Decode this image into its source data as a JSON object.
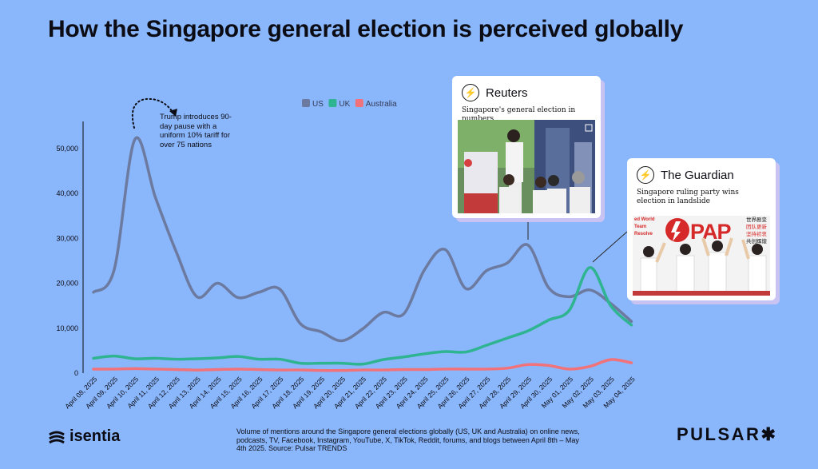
{
  "title": "How the Singapore general election is perceived globally",
  "chart_data": {
    "type": "line",
    "categories": [
      "April 08, 2025",
      "April 09, 2025",
      "April 10, 2025",
      "April 11, 2025",
      "April 12, 2025",
      "April 13, 2025",
      "April 14, 2025",
      "April 15, 2025",
      "April 16, 2025",
      "April 17, 2025",
      "April 18, 2025",
      "April 19, 2025",
      "April 20, 2025",
      "April 21, 2025",
      "April 22, 2025",
      "April 23, 2025",
      "April 24, 2025",
      "April 25, 2025",
      "April 26, 2025",
      "April 27, 2025",
      "April 28, 2025",
      "April 29, 2025",
      "April 30, 2025",
      "May 01, 2025",
      "May 02, 2025",
      "May 03, 2025",
      "May 04, 2025"
    ],
    "series": [
      {
        "name": "US",
        "color": "#6c7aa0",
        "values": [
          18000,
          23000,
          52000,
          39000,
          27000,
          17000,
          20000,
          16800,
          18000,
          18700,
          11000,
          9200,
          7200,
          9800,
          13500,
          13200,
          23000,
          27500,
          18800,
          22800,
          24500,
          28500,
          19000,
          17000,
          18500,
          15500,
          11500
        ]
      },
      {
        "name": "UK",
        "color": "#2fb491",
        "values": [
          3300,
          3800,
          3200,
          3300,
          3100,
          3200,
          3400,
          3700,
          3100,
          3100,
          2200,
          2200,
          2200,
          2000,
          3000,
          3600,
          4300,
          4800,
          4700,
          6200,
          7800,
          9400,
          11800,
          14000,
          23500,
          15000,
          10700
        ]
      },
      {
        "name": "Australia",
        "color": "#f2727a",
        "values": [
          900,
          900,
          1000,
          900,
          800,
          700,
          800,
          900,
          800,
          700,
          700,
          600,
          600,
          700,
          700,
          800,
          800,
          900,
          900,
          900,
          1100,
          1900,
          1700,
          900,
          1500,
          3000,
          2300
        ]
      }
    ],
    "yticks": [
      "0",
      "10,000",
      "20,000",
      "30,000",
      "40,000",
      "50,000"
    ],
    "ylim": [
      0,
      56000
    ],
    "legend": [
      "US",
      "UK",
      "Australia"
    ],
    "annotation": "Trump introduces 90-day pause with a uniform 10% tariff for over 75 nations"
  },
  "cards": {
    "reuters": {
      "publisher": "Reuters",
      "headline": "Singapore's general election in numbers"
    },
    "guardian": {
      "publisher": "The Guardian",
      "headline": "Singapore ruling party wins election in landslide"
    }
  },
  "photo_text": {
    "brand": "PAP",
    "left": "ed World Team Resolve",
    "right": "世界剧变 团队更新 坚持初衷 共创辉煌"
  },
  "footer": {
    "note": "Volume of mentions around the Singapore general elections globally (US, UK and Australia) on online news, podcasts, TV, Facebook, Instagram, YouTube, X, TikTok, Reddit, forums, and blogs between April 8th – May 4th 2025. Source: Pulsar TRENDS",
    "brand_left": "isentia",
    "brand_right": "PULSAR✱"
  }
}
